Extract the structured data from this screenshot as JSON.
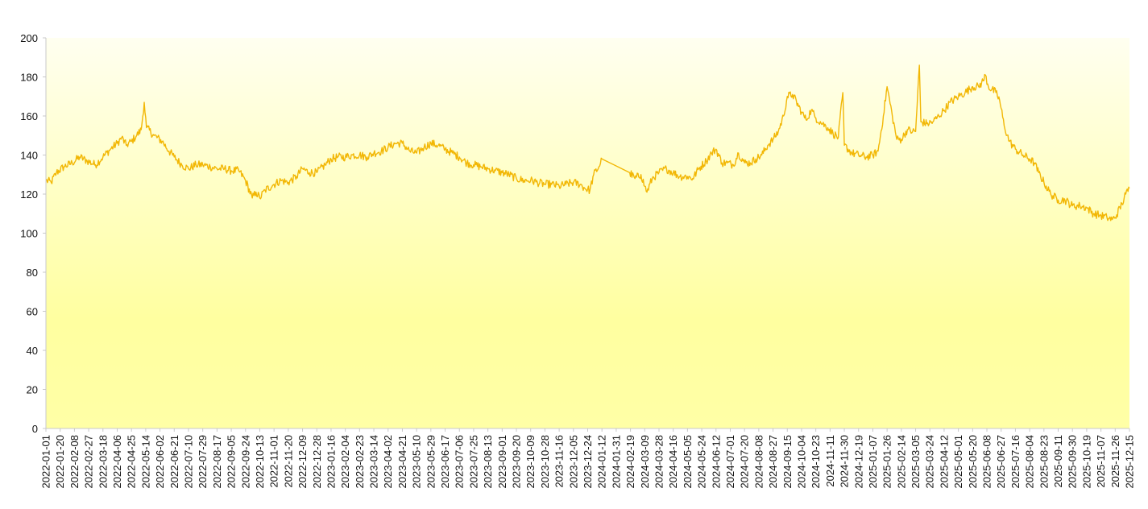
{
  "chart_data": {
    "type": "line",
    "title": "",
    "xlabel": "",
    "ylabel": "",
    "ylim": [
      0,
      200
    ],
    "yticks": [
      0,
      20,
      40,
      60,
      80,
      100,
      120,
      140,
      160,
      180,
      200
    ],
    "x_range": [
      "2022-01-01",
      "2025-12-15"
    ],
    "xtick_labels": [
      "2022-01-01",
      "2022-01-20",
      "2022-02-08",
      "2022-02-27",
      "2022-03-18",
      "2022-04-06",
      "2022-04-25",
      "2022-05-14",
      "2022-06-02",
      "2022-06-21",
      "2022-07-10",
      "2022-07-29",
      "2022-08-17",
      "2022-09-05",
      "2022-09-24",
      "2022-10-13",
      "2022-11-01",
      "2022-11-20",
      "2022-12-09",
      "2022-12-28",
      "2023-01-16",
      "2023-02-04",
      "2023-02-23",
      "2023-03-14",
      "2023-04-02",
      "2023-04-21",
      "2023-05-10",
      "2023-05-29",
      "2023-06-17",
      "2023-07-06",
      "2023-07-25",
      "2023-08-13",
      "2023-09-01",
      "2023-09-20",
      "2023-10-09",
      "2023-10-28",
      "2023-11-16",
      "2023-12-05",
      "2023-12-24",
      "2024-01-12",
      "2024-01-31",
      "2024-02-19",
      "2024-03-09",
      "2024-03-28",
      "2024-04-16",
      "2024-05-05",
      "2024-05-24",
      "2024-06-12",
      "2024-07-01",
      "2024-07-20",
      "2024-08-08",
      "2024-08-27",
      "2024-09-15",
      "2024-10-04",
      "2024-10-23",
      "2024-11-11",
      "2024-11-30",
      "2024-12-19",
      "2025-01-07",
      "2025-01-26",
      "2025-02-14",
      "2025-03-05",
      "2025-03-24",
      "2025-04-12",
      "2025-05-01",
      "2025-05-20",
      "2025-06-08",
      "2025-06-27",
      "2025-07-16",
      "2025-08-04",
      "2025-08-23",
      "2025-09-11",
      "2025-09-30",
      "2025-10-19",
      "2025-11-07",
      "2025-11-26",
      "2025-12-15"
    ],
    "grid": false,
    "legend": "none",
    "background": "gradient pale yellow",
    "colors": {
      "line": "#f2b705",
      "plot_top": "#fffff0",
      "plot_bottom": "#ffffa0",
      "axis": "#c8c8c8",
      "text": "#111111"
    },
    "series": [
      {
        "values": [
          [
            "2022-01-01",
            127
          ],
          [
            "2022-01-08",
            126
          ],
          [
            "2022-01-15",
            131
          ],
          [
            "2022-01-25",
            134
          ],
          [
            "2022-02-05",
            136
          ],
          [
            "2022-02-15",
            139
          ],
          [
            "2022-02-25",
            137
          ],
          [
            "2022-03-08",
            135
          ],
          [
            "2022-03-18",
            139
          ],
          [
            "2022-03-28",
            143
          ],
          [
            "2022-04-06",
            146
          ],
          [
            "2022-04-12",
            149
          ],
          [
            "2022-04-18",
            145
          ],
          [
            "2022-04-25",
            147
          ],
          [
            "2022-05-02",
            150
          ],
          [
            "2022-05-08",
            153
          ],
          [
            "2022-05-12",
            167
          ],
          [
            "2022-05-15",
            154
          ],
          [
            "2022-05-25",
            150
          ],
          [
            "2022-06-05",
            147
          ],
          [
            "2022-06-14",
            142
          ],
          [
            "2022-06-21",
            139
          ],
          [
            "2022-07-01",
            135
          ],
          [
            "2022-07-10",
            133
          ],
          [
            "2022-07-20",
            135
          ],
          [
            "2022-07-29",
            135
          ],
          [
            "2022-08-08",
            134
          ],
          [
            "2022-08-17",
            133
          ],
          [
            "2022-08-27",
            133
          ],
          [
            "2022-09-05",
            132
          ],
          [
            "2022-09-15",
            132
          ],
          [
            "2022-09-24",
            127
          ],
          [
            "2022-10-03",
            118
          ],
          [
            "2022-10-08",
            121
          ],
          [
            "2022-10-13",
            118
          ],
          [
            "2022-10-20",
            122
          ],
          [
            "2022-11-01",
            125
          ],
          [
            "2022-11-10",
            127
          ],
          [
            "2022-11-20",
            126
          ],
          [
            "2022-12-01",
            129
          ],
          [
            "2022-12-09",
            133
          ],
          [
            "2022-12-18",
            131
          ],
          [
            "2022-12-28",
            131
          ],
          [
            "2023-01-08",
            135
          ],
          [
            "2023-01-16",
            138
          ],
          [
            "2023-01-25",
            139
          ],
          [
            "2023-02-04",
            139
          ],
          [
            "2023-02-14",
            140
          ],
          [
            "2023-02-23",
            140
          ],
          [
            "2023-03-05",
            139
          ],
          [
            "2023-03-14",
            141
          ],
          [
            "2023-03-24",
            142
          ],
          [
            "2023-04-02",
            144
          ],
          [
            "2023-04-12",
            146
          ],
          [
            "2023-04-21",
            146
          ],
          [
            "2023-05-01",
            142
          ],
          [
            "2023-05-10",
            141
          ],
          [
            "2023-05-20",
            144
          ],
          [
            "2023-05-29",
            146
          ],
          [
            "2023-06-08",
            145
          ],
          [
            "2023-06-17",
            143
          ],
          [
            "2023-06-27",
            141
          ],
          [
            "2023-07-06",
            139
          ],
          [
            "2023-07-16",
            136
          ],
          [
            "2023-07-25",
            135
          ],
          [
            "2023-08-04",
            134
          ],
          [
            "2023-08-13",
            133
          ],
          [
            "2023-08-23",
            132
          ],
          [
            "2023-09-01",
            131
          ],
          [
            "2023-09-10",
            130
          ],
          [
            "2023-09-20",
            128
          ],
          [
            "2023-09-30",
            127
          ],
          [
            "2023-10-09",
            127
          ],
          [
            "2023-10-18",
            126
          ],
          [
            "2023-10-28",
            125
          ],
          [
            "2023-11-06",
            125
          ],
          [
            "2023-11-16",
            124
          ],
          [
            "2023-11-25",
            125
          ],
          [
            "2023-12-05",
            126
          ],
          [
            "2023-12-14",
            125
          ],
          [
            "2023-12-20",
            123
          ],
          [
            "2023-12-27",
            122
          ],
          [
            "2024-01-01",
            130
          ],
          [
            "2024-01-08",
            134
          ],
          [
            "2024-01-12",
            138
          ],
          [
            "2024-02-18",
            131
          ],
          [
            "2024-02-25",
            128
          ],
          [
            "2024-03-04",
            130
          ],
          [
            "2024-03-09",
            124
          ],
          [
            "2024-03-12",
            121
          ],
          [
            "2024-03-19",
            128
          ],
          [
            "2024-03-28",
            131
          ],
          [
            "2024-04-07",
            133
          ],
          [
            "2024-04-16",
            131
          ],
          [
            "2024-04-25",
            129
          ],
          [
            "2024-05-05",
            129
          ],
          [
            "2024-05-12",
            128
          ],
          [
            "2024-05-20",
            133
          ],
          [
            "2024-05-30",
            137
          ],
          [
            "2024-06-06",
            141
          ],
          [
            "2024-06-12",
            143
          ],
          [
            "2024-06-20",
            136
          ],
          [
            "2024-06-27",
            136
          ],
          [
            "2024-07-05",
            135
          ],
          [
            "2024-07-12",
            141
          ],
          [
            "2024-07-20",
            136
          ],
          [
            "2024-07-28",
            136
          ],
          [
            "2024-08-04",
            138
          ],
          [
            "2024-08-12",
            140
          ],
          [
            "2024-08-20",
            145
          ],
          [
            "2024-08-27",
            148
          ],
          [
            "2024-09-03",
            152
          ],
          [
            "2024-09-10",
            160
          ],
          [
            "2024-09-15",
            170
          ],
          [
            "2024-09-22",
            171
          ],
          [
            "2024-10-04",
            162
          ],
          [
            "2024-10-10",
            158
          ],
          [
            "2024-10-17",
            163
          ],
          [
            "2024-10-23",
            159
          ],
          [
            "2024-11-01",
            156
          ],
          [
            "2024-11-08",
            154
          ],
          [
            "2024-11-15",
            151
          ],
          [
            "2024-11-22",
            149
          ],
          [
            "2024-11-28",
            172
          ],
          [
            "2024-11-30",
            145
          ],
          [
            "2024-12-10",
            141
          ],
          [
            "2024-12-19",
            140
          ],
          [
            "2024-12-29",
            139
          ],
          [
            "2025-01-07",
            140
          ],
          [
            "2025-01-14",
            142
          ],
          [
            "2025-01-21",
            160
          ],
          [
            "2025-01-26",
            175
          ],
          [
            "2025-02-02",
            160
          ],
          [
            "2025-02-08",
            148
          ],
          [
            "2025-02-14",
            148
          ],
          [
            "2025-02-22",
            153
          ],
          [
            "2025-03-01",
            152
          ],
          [
            "2025-03-05",
            152
          ],
          [
            "2025-03-10",
            186
          ],
          [
            "2025-03-12",
            157
          ],
          [
            "2025-03-20",
            156
          ],
          [
            "2025-03-28",
            157
          ],
          [
            "2025-04-05",
            160
          ],
          [
            "2025-04-12",
            163
          ],
          [
            "2025-04-20",
            167
          ],
          [
            "2025-05-01",
            170
          ],
          [
            "2025-05-10",
            172
          ],
          [
            "2025-05-20",
            175
          ],
          [
            "2025-05-28",
            175
          ],
          [
            "2025-06-03",
            178
          ],
          [
            "2025-06-06",
            181
          ],
          [
            "2025-06-10",
            175
          ],
          [
            "2025-06-20",
            172
          ],
          [
            "2025-06-25",
            168
          ],
          [
            "2025-07-01",
            155
          ],
          [
            "2025-07-08",
            147
          ],
          [
            "2025-07-16",
            143
          ],
          [
            "2025-07-26",
            140
          ],
          [
            "2025-08-04",
            138
          ],
          [
            "2025-08-10",
            136
          ],
          [
            "2025-08-16",
            131
          ],
          [
            "2025-08-23",
            126
          ],
          [
            "2025-09-01",
            120
          ],
          [
            "2025-09-11",
            117
          ],
          [
            "2025-09-20",
            117
          ],
          [
            "2025-09-30",
            114
          ],
          [
            "2025-10-10",
            114
          ],
          [
            "2025-10-19",
            113
          ],
          [
            "2025-10-28",
            110
          ],
          [
            "2025-11-07",
            109
          ],
          [
            "2025-11-15",
            108
          ],
          [
            "2025-11-22",
            107
          ],
          [
            "2025-11-26",
            108
          ],
          [
            "2025-12-05",
            115
          ],
          [
            "2025-12-10",
            120
          ],
          [
            "2025-12-15",
            123
          ]
        ]
      }
    ]
  }
}
